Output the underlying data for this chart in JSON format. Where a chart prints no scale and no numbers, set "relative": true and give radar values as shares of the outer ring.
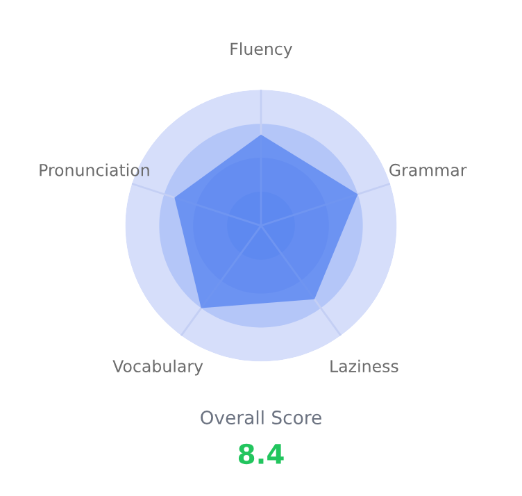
{
  "chart_data": {
    "type": "radar",
    "relative": true,
    "grid": "x",
    "categories": [
      "Fluency",
      "Grammar",
      "Laziness",
      "Vocabulary",
      "Pronunciation"
    ],
    "series": [
      {
        "color": "#5a86f0",
        "values": [
          0.67,
          0.75,
          0.67,
          0.75,
          0.67
        ]
      }
    ],
    "annotations": [
      "Overall Score",
      "8.4"
    ]
  }
}
